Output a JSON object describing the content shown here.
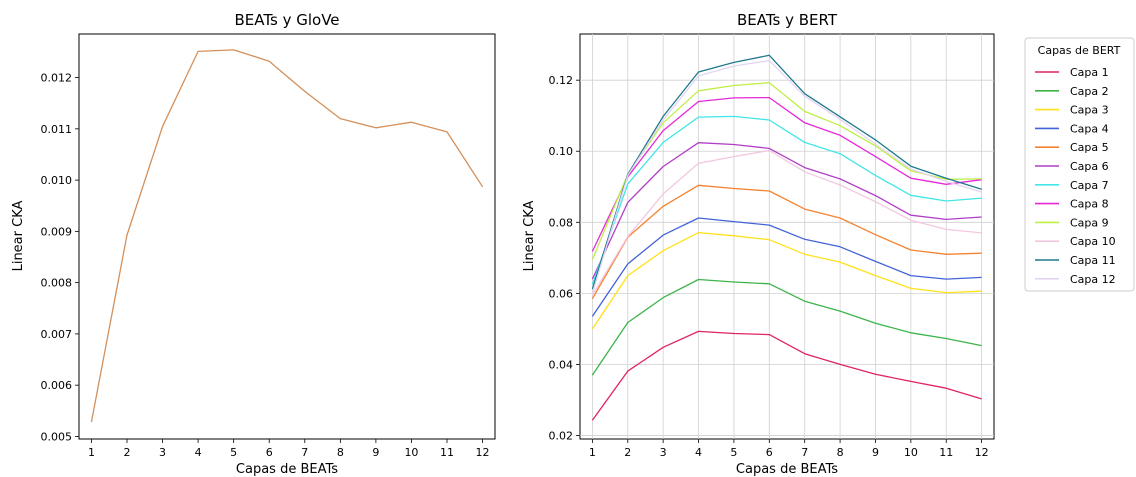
{
  "chart_data": [
    {
      "type": "line",
      "title": "BEATs y GloVe",
      "xlabel": "Capas de BEATs",
      "ylabel": "Linear CKA",
      "x": [
        1,
        2,
        3,
        4,
        5,
        6,
        7,
        8,
        9,
        10,
        11,
        12
      ],
      "xlim": [
        0.65,
        12.35
      ],
      "ylim": [
        0.00495,
        0.01285
      ],
      "yticks": [
        0.005,
        0.006,
        0.007,
        0.008,
        0.009,
        0.01,
        0.011,
        0.012
      ],
      "ytick_labels": [
        "0.005",
        "0.006",
        "0.007",
        "0.008",
        "0.009",
        "0.010",
        "0.011",
        "0.012"
      ],
      "grid": false,
      "series": [
        {
          "color": "#d4905a",
          "values": [
            0.00528,
            0.00893,
            0.01105,
            0.01251,
            0.01254,
            0.01232,
            0.01173,
            0.0112,
            0.01102,
            0.01113,
            0.01094,
            0.00987
          ]
        }
      ]
    },
    {
      "type": "line",
      "title": "BEATs y BERT",
      "xlabel": "Capas de BEATs",
      "ylabel": "Linear CKA",
      "x": [
        1,
        2,
        3,
        4,
        5,
        6,
        7,
        8,
        9,
        10,
        11,
        12
      ],
      "xlim": [
        0.65,
        12.35
      ],
      "ylim": [
        0.019,
        0.133
      ],
      "yticks": [
        0.02,
        0.04,
        0.06,
        0.08,
        0.1,
        0.12
      ],
      "ytick_labels": [
        "0.02",
        "0.04",
        "0.06",
        "0.08",
        "0.10",
        "0.12"
      ],
      "grid": true,
      "legend": {
        "title": "Capas de BERT",
        "placement": "outside-right"
      },
      "series": [
        {
          "name": "Capa 1",
          "color": "#e0245e",
          "values": [
            0.0243,
            0.0381,
            0.0448,
            0.0493,
            0.0487,
            0.0484,
            0.043,
            0.04,
            0.0372,
            0.0352,
            0.0333,
            0.0303
          ]
        },
        {
          "name": "Capa 2",
          "color": "#3cb44b",
          "values": [
            0.037,
            0.0518,
            0.0588,
            0.0639,
            0.0632,
            0.0627,
            0.0578,
            0.055,
            0.0516,
            0.0489,
            0.0473,
            0.0453
          ]
        },
        {
          "name": "Capa 3",
          "color": "#ffe119",
          "values": [
            0.05,
            0.065,
            0.072,
            0.0771,
            0.0762,
            0.0751,
            0.071,
            0.0688,
            0.065,
            0.0614,
            0.0602,
            0.0606
          ]
        },
        {
          "name": "Capa 4",
          "color": "#4363d8",
          "values": [
            0.0535,
            0.0683,
            0.0764,
            0.0812,
            0.0802,
            0.0792,
            0.0752,
            0.0731,
            0.069,
            0.065,
            0.064,
            0.0645
          ]
        },
        {
          "name": "Capa 5",
          "color": "#f58231",
          "values": [
            0.0585,
            0.0758,
            0.0845,
            0.0904,
            0.0895,
            0.0888,
            0.0837,
            0.0812,
            0.0765,
            0.0722,
            0.071,
            0.0713
          ]
        },
        {
          "name": "Capa 6",
          "color": "#b03fc7",
          "values": [
            0.064,
            0.0856,
            0.0957,
            0.1024,
            0.1019,
            0.1008,
            0.0954,
            0.0922,
            0.0875,
            0.082,
            0.0808,
            0.0815
          ]
        },
        {
          "name": "Capa 7",
          "color": "#42e6e6",
          "values": [
            0.0625,
            0.0908,
            0.1025,
            0.1096,
            0.1098,
            0.1088,
            0.1025,
            0.0993,
            0.0932,
            0.0876,
            0.086,
            0.0868
          ]
        },
        {
          "name": "Capa 8",
          "color": "#e628d9",
          "values": [
            0.0718,
            0.0928,
            0.1058,
            0.114,
            0.115,
            0.1151,
            0.108,
            0.1045,
            0.0985,
            0.0924,
            0.0907,
            0.092
          ]
        },
        {
          "name": "Capa 9",
          "color": "#bfef45",
          "values": [
            0.0695,
            0.0935,
            0.108,
            0.117,
            0.1185,
            0.1193,
            0.1112,
            0.1072,
            0.1015,
            0.0945,
            0.0921,
            0.0922
          ]
        },
        {
          "name": "Capa 10",
          "color": "#f2c8e0",
          "values": [
            0.0595,
            0.076,
            0.088,
            0.0966,
            0.0985,
            0.1002,
            0.0942,
            0.0905,
            0.0858,
            0.0806,
            0.078,
            0.077
          ]
        },
        {
          "name": "Capa 11",
          "color": "#1f7a8c",
          "values": [
            0.0612,
            0.0935,
            0.1098,
            0.1223,
            0.125,
            0.127,
            0.1162,
            0.1097,
            0.1032,
            0.0958,
            0.0924,
            0.0893
          ]
        },
        {
          "name": "Capa 12",
          "color": "#e3d5f2",
          "values": [
            0.06,
            0.0932,
            0.1088,
            0.1212,
            0.124,
            0.1255,
            0.1155,
            0.109,
            0.102,
            0.095,
            0.0915,
            0.0885
          ]
        }
      ]
    }
  ]
}
